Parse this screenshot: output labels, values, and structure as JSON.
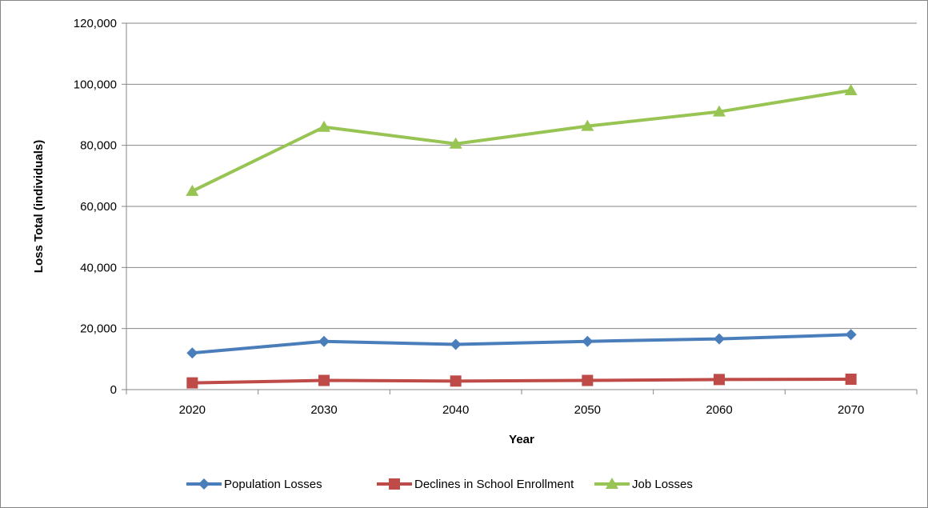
{
  "chart_data": {
    "type": "line",
    "title": "",
    "xlabel": "Year",
    "ylabel": "Loss Total (individuals)",
    "categories": [
      "2020",
      "2030",
      "2040",
      "2050",
      "2060",
      "2070"
    ],
    "ylim": [
      0,
      120000
    ],
    "yticks": [
      0,
      20000,
      40000,
      60000,
      80000,
      100000,
      120000
    ],
    "ytick_labels": [
      "0",
      "20,000",
      "40,000",
      "60,000",
      "80,000",
      "100,000",
      "120,000"
    ],
    "grid": "horizontal",
    "legend_position": "bottom",
    "series": [
      {
        "name": "Population Losses",
        "color": "#4a7ebb",
        "marker": "diamond",
        "values": [
          12000,
          15800,
          14800,
          15800,
          16600,
          18000
        ]
      },
      {
        "name": "Declines in School Enrollment",
        "color": "#be4b48",
        "marker": "square",
        "values": [
          2200,
          3000,
          2800,
          3000,
          3300,
          3400
        ]
      },
      {
        "name": "Job Losses",
        "color": "#98c454",
        "marker": "triangle",
        "values": [
          65000,
          86000,
          80500,
          86300,
          91000,
          98000
        ]
      }
    ]
  }
}
